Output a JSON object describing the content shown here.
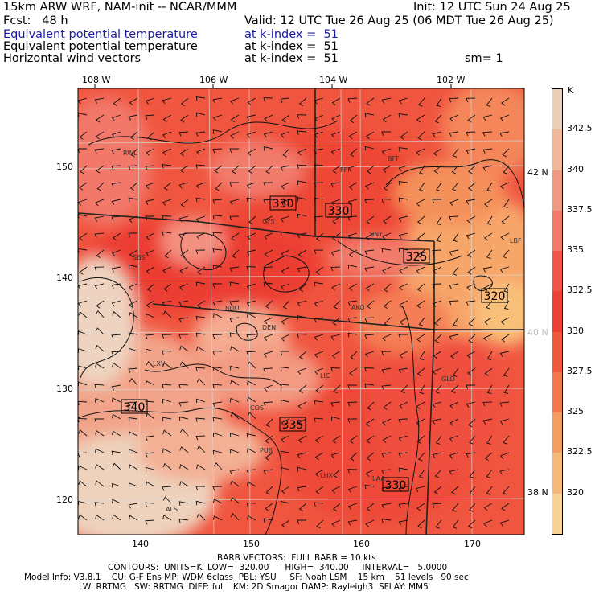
{
  "header": {
    "model": "15km ARW WRF, NAM-init -- NCAR/MMM",
    "init": "Init: 12 UTC Sun 24 Aug 25",
    "fcst": "Fcst:   48 h",
    "valid": "Valid: 12 UTC Tue 26 Aug 25 (06 MDT Tue 26 Aug 25)",
    "field1_name": "Equivalent potential temperature",
    "field1_level": "at k-index =  51",
    "field2_name": "Equivalent potential temperature",
    "field2_level": "at k-index =  51",
    "field3_name": "Horizontal wind vectors",
    "field3_level": "at k-index =  51",
    "smoothing": "sm= 1"
  },
  "colorbar": {
    "unit": "K",
    "labels": [
      "342.5",
      "340",
      "337.5",
      "335",
      "332.5",
      "330",
      "327.5",
      "325",
      "322.5",
      "320"
    ],
    "colors": [
      "#e8cfb6",
      "#f0b898",
      "#f09a82",
      "#f27a6a",
      "#f05548",
      "#ee4035",
      "#f0583c",
      "#f27a4e",
      "#f49c62",
      "#f6b878",
      "#fad296"
    ]
  },
  "map_axes": {
    "x_labels": [
      "108 W",
      "106 W",
      "104 W",
      "102 W"
    ],
    "grid_x_ticks": [
      "140",
      "150",
      "160",
      "170"
    ],
    "grid_y_ticks": [
      "150",
      "140",
      "130",
      "120"
    ],
    "lat_labels": [
      "42 N",
      "40 N",
      "38 N"
    ]
  },
  "contour_labels": [
    "330",
    "330",
    "325",
    "320",
    "340",
    "335",
    "330"
  ],
  "stations": [
    "RWL",
    "FFF",
    "BFF",
    "CYS",
    "SNY",
    "LBF",
    "SBS",
    "BOU",
    "AKO",
    "DEN",
    "LXV",
    "LIC",
    "GLD",
    "COS",
    "PUB",
    "LHX",
    "LAA",
    "ALS"
  ],
  "footer": {
    "line1": "BARB VECTORS:  FULL BARB = 10 kts",
    "line2": "CONTOURS:  UNITS=K  LOW=  320.00      HIGH=  340.00     INTERVAL=   5.0000",
    "line3": "Model Info: V3.8.1    CU: G-F Ens MP: WDM 6class  PBL: YSU     SF: Noah LSM    15 km    51 levels   90 sec",
    "line4": "LW: RRTMG   SW: RRTMG  DIFF: full   KM: 2D Smagor DAMP: Rayleigh3  SFLAY: MM5"
  }
}
